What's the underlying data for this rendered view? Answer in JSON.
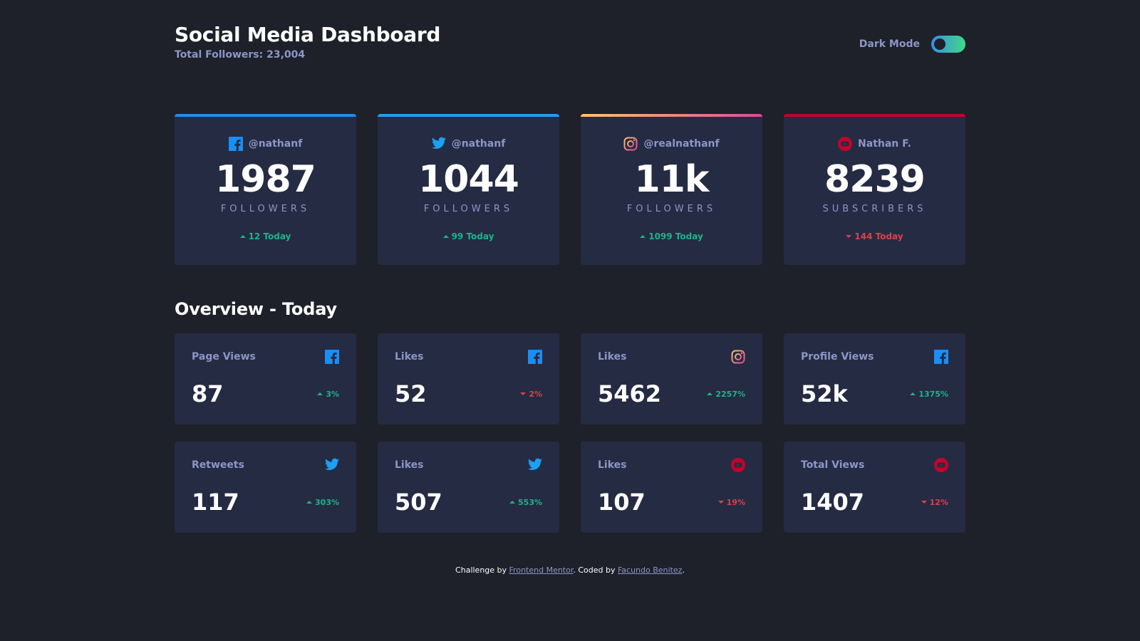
{
  "header": {
    "title": "Social Media Dashboard",
    "total_followers": "Total Followers: 23,004",
    "mode_label": "Dark Mode"
  },
  "colors": {
    "facebook": "#198ff5",
    "twitter": "#1ca0f2",
    "instagram_start": "#fdc468",
    "instagram_end": "#df4996",
    "youtube": "#c4032a",
    "up": "#1db489",
    "down": "#dc414c"
  },
  "cards": [
    {
      "network": "facebook",
      "icon": "facebook-icon",
      "handle": "@nathanf",
      "count": "1987",
      "label": "FOLLOWERS",
      "today": "12 Today",
      "trend": "up"
    },
    {
      "network": "twitter",
      "icon": "twitter-icon",
      "handle": "@nathanf",
      "count": "1044",
      "label": "FOLLOWERS",
      "today": "99 Today",
      "trend": "up"
    },
    {
      "network": "instagram",
      "icon": "instagram-icon",
      "handle": "@realnathanf",
      "count": "11k",
      "label": "FOLLOWERS",
      "today": "1099 Today",
      "trend": "up"
    },
    {
      "network": "youtube",
      "icon": "youtube-icon",
      "handle": "Nathan F.",
      "count": "8239",
      "label": "SUBSCRIBERS",
      "today": "144 Today",
      "trend": "down"
    }
  ],
  "overview": {
    "title": "Overview - Today",
    "tiles": [
      {
        "label": "Page Views",
        "icon": "facebook-icon",
        "value": "87",
        "pct": "3%",
        "trend": "up"
      },
      {
        "label": "Likes",
        "icon": "facebook-icon",
        "value": "52",
        "pct": "2%",
        "trend": "down"
      },
      {
        "label": "Likes",
        "icon": "instagram-icon",
        "value": "5462",
        "pct": "2257%",
        "trend": "up"
      },
      {
        "label": "Profile Views",
        "icon": "facebook-icon",
        "value": "52k",
        "pct": "1375%",
        "trend": "up"
      },
      {
        "label": "Retweets",
        "icon": "twitter-icon",
        "value": "117",
        "pct": "303%",
        "trend": "up"
      },
      {
        "label": "Likes",
        "icon": "twitter-icon",
        "value": "507",
        "pct": "553%",
        "trend": "up"
      },
      {
        "label": "Likes",
        "icon": "youtube-icon",
        "value": "107",
        "pct": "19%",
        "trend": "down"
      },
      {
        "label": "Total Views",
        "icon": "youtube-icon",
        "value": "1407",
        "pct": "12%",
        "trend": "down"
      }
    ]
  },
  "footer": {
    "prefix": "Challenge by ",
    "link1": "Frontend Mentor",
    "middle": ". Coded by ",
    "link2": "Facundo Benitez",
    "suffix": "."
  }
}
